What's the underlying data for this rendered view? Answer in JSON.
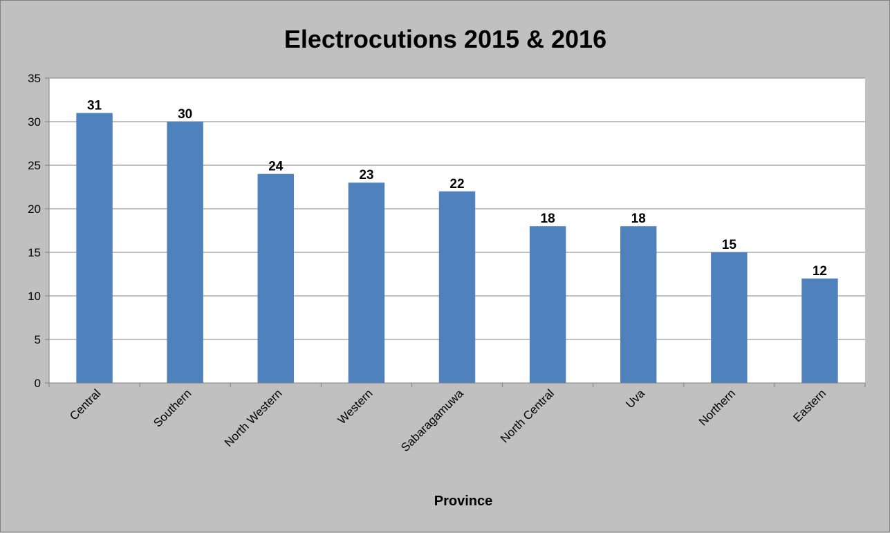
{
  "chart_data": {
    "type": "bar",
    "title": "Electrocutions 2015 & 2016",
    "xlabel": "Province",
    "ylabel": "",
    "categories": [
      "Central",
      "Southern",
      "North Western",
      "Western",
      "Sabaragamuwa",
      "North Central",
      "Uva",
      "Northern",
      "Eastern"
    ],
    "values": [
      31,
      30,
      24,
      23,
      22,
      18,
      18,
      15,
      12
    ],
    "ylim": [
      0,
      35
    ],
    "yticks": [
      0,
      5,
      10,
      15,
      20,
      25,
      30,
      35
    ],
    "grid": true,
    "legend": "none",
    "data_labels": true,
    "colors": {
      "bar": "#4f81bd",
      "plot_background": "#ffffff",
      "chart_background": "#c0c0c0",
      "gridline": "#808080",
      "axis": "#808080"
    }
  }
}
